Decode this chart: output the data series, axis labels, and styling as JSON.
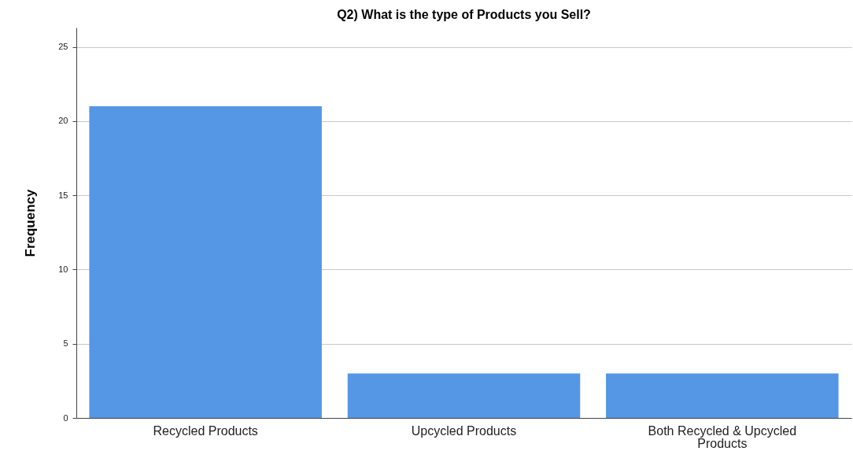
{
  "chart_data": {
    "type": "bar",
    "title": "Q2) What is the type of Products you Sell?",
    "ylabel": "Frequency",
    "categories": [
      "Recycled Products",
      "Upcycled Products",
      "Both Recycled & Upcycled Products"
    ],
    "values": [
      21,
      3,
      3
    ],
    "color": "#5596e5",
    "ylim": [
      0,
      26.3
    ],
    "yticks": [
      0,
      5,
      10,
      15,
      20,
      25
    ],
    "grid": "y"
  }
}
